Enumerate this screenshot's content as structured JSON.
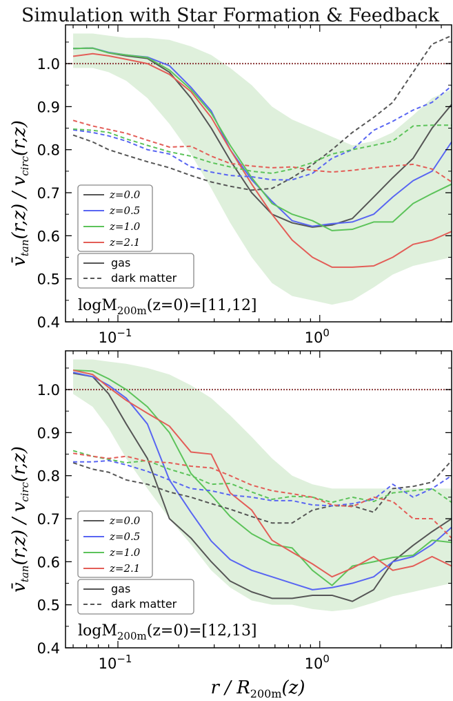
{
  "title": "Simulation with Star Formation & Feedback",
  "colors": {
    "z0": "#555555",
    "z05": "#5865f2",
    "z1": "#5cc35a",
    "z21": "#e35d57",
    "band": "#dff0dc",
    "refline": "#8b3a3a"
  },
  "shared_xlabel": "r / R200m(z)",
  "chart_data": [
    {
      "type": "line",
      "ylabel": "v̄tan(r,z) / vcirc(r,z)",
      "xscale": "log",
      "xlim": [
        0.055,
        4.5
      ],
      "ylim": [
        0.4,
        1.09
      ],
      "yticks": [
        0.4,
        0.5,
        0.6,
        0.7,
        0.8,
        0.9,
        1.0
      ],
      "ytick_labels": [
        "0.4",
        "0.5",
        "0.6",
        "0.7",
        "0.8",
        "0.9",
        "1.0"
      ],
      "xticks": [
        0.1,
        1.0
      ],
      "xtick_labels": [
        "10−1",
        "100"
      ],
      "reference_line": 1.0,
      "annotation": "logM200m(z=0)=[11,12]",
      "legend_series_labels": [
        "z=0.0",
        "z=0.5",
        "z=1.0",
        "z=2.1"
      ],
      "legend_style_labels": [
        "gas",
        "dark matter"
      ],
      "legend_placement": "center-left",
      "x": [
        0.06,
        0.075,
        0.09,
        0.11,
        0.14,
        0.18,
        0.23,
        0.29,
        0.36,
        0.46,
        0.58,
        0.73,
        0.92,
        1.15,
        1.45,
        1.85,
        2.3,
        2.9,
        3.6,
        4.5
      ],
      "band": {
        "series": "z=1.0 gas",
        "lower": [
          0.99,
          0.99,
          0.98,
          0.96,
          0.92,
          0.86,
          0.79,
          0.71,
          0.63,
          0.55,
          0.49,
          0.46,
          0.45,
          0.44,
          0.45,
          0.48,
          0.51,
          0.53,
          0.54,
          0.55
        ],
        "upper": [
          1.07,
          1.07,
          1.065,
          1.06,
          1.06,
          1.055,
          1.04,
          1.02,
          0.99,
          0.95,
          0.9,
          0.87,
          0.85,
          0.83,
          0.81,
          0.82,
          0.84,
          0.88,
          0.92,
          0.94
        ]
      },
      "series": [
        {
          "name": "z=0.0",
          "component": "gas",
          "color_key": "z0",
          "values": [
            1.035,
            1.036,
            1.025,
            1.018,
            1.012,
            0.98,
            0.92,
            0.85,
            0.775,
            0.7,
            0.65,
            0.63,
            0.62,
            0.625,
            0.64,
            0.69,
            0.735,
            0.78,
            0.85,
            0.905
          ]
        },
        {
          "name": "z=0.5",
          "component": "gas",
          "color_key": "z05",
          "values": [
            1.035,
            1.036,
            1.026,
            1.02,
            1.015,
            0.995,
            0.945,
            0.89,
            0.8,
            0.73,
            0.68,
            0.635,
            0.622,
            0.628,
            0.632,
            0.65,
            0.69,
            0.728,
            0.75,
            0.818
          ]
        },
        {
          "name": "z=1.0",
          "component": "gas",
          "color_key": "z1",
          "values": [
            1.035,
            1.036,
            1.025,
            1.02,
            1.014,
            0.985,
            0.94,
            0.885,
            0.81,
            0.735,
            0.675,
            0.65,
            0.635,
            0.612,
            0.615,
            0.632,
            0.632,
            0.675,
            0.698,
            0.72
          ]
        },
        {
          "name": "z=2.1",
          "component": "gas",
          "color_key": "z21",
          "values": [
            1.017,
            1.023,
            1.018,
            1.01,
            1.0,
            0.975,
            0.935,
            0.875,
            0.8,
            0.72,
            0.65,
            0.59,
            0.55,
            0.527,
            0.527,
            0.53,
            0.55,
            0.58,
            0.59,
            0.61
          ]
        },
        {
          "name": "z=0.0",
          "component": "dark matter",
          "color_key": "z0",
          "values": [
            0.834,
            0.818,
            0.8,
            0.787,
            0.772,
            0.758,
            0.74,
            0.725,
            0.715,
            0.706,
            0.71,
            0.735,
            0.765,
            0.8,
            0.84,
            0.875,
            0.91,
            0.98,
            1.045,
            1.065
          ]
        },
        {
          "name": "z=0.5",
          "component": "dark matter",
          "color_key": "z05",
          "values": [
            0.846,
            0.84,
            0.832,
            0.82,
            0.8,
            0.79,
            0.76,
            0.748,
            0.74,
            0.737,
            0.73,
            0.73,
            0.745,
            0.78,
            0.8,
            0.845,
            0.866,
            0.892,
            0.91,
            0.948
          ]
        },
        {
          "name": "z=1.0",
          "component": "dark matter",
          "color_key": "z1",
          "values": [
            0.848,
            0.845,
            0.84,
            0.825,
            0.81,
            0.795,
            0.785,
            0.77,
            0.76,
            0.75,
            0.745,
            0.755,
            0.77,
            0.79,
            0.8,
            0.81,
            0.82,
            0.855,
            0.857,
            0.857
          ]
        },
        {
          "name": "z=2.1",
          "component": "dark matter",
          "color_key": "z21",
          "values": [
            0.868,
            0.855,
            0.847,
            0.838,
            0.822,
            0.806,
            0.808,
            0.785,
            0.768,
            0.762,
            0.758,
            0.76,
            0.752,
            0.748,
            0.752,
            0.758,
            0.762,
            0.766,
            0.755,
            0.725
          ]
        }
      ]
    },
    {
      "type": "line",
      "ylabel": "v̄tan(r,z) / vcirc(r,z)",
      "xlabel": "r / R200m(z)",
      "xscale": "log",
      "xlim": [
        0.055,
        4.5
      ],
      "ylim": [
        0.4,
        1.09
      ],
      "yticks": [
        0.4,
        0.5,
        0.6,
        0.7,
        0.8,
        0.9,
        1.0
      ],
      "ytick_labels": [
        "0.4",
        "0.5",
        "0.6",
        "0.7",
        "0.8",
        "0.9",
        "1.0"
      ],
      "xticks": [
        0.1,
        1.0
      ],
      "xtick_labels": [
        "10−1",
        "100"
      ],
      "reference_line": 1.0,
      "annotation": "logM200m(z=0)=[12,13]",
      "legend_series_labels": [
        "z=0.0",
        "z=0.5",
        "z=1.0",
        "z=2.1"
      ],
      "legend_style_labels": [
        "gas",
        "dark matter"
      ],
      "legend_placement": "center-left",
      "x": [
        0.06,
        0.075,
        0.09,
        0.11,
        0.14,
        0.18,
        0.23,
        0.29,
        0.36,
        0.46,
        0.58,
        0.73,
        0.92,
        1.15,
        1.45,
        1.85,
        2.3,
        2.9,
        3.6,
        4.5
      ],
      "band": {
        "series": "z=1.0 gas",
        "lower": [
          0.99,
          0.96,
          0.91,
          0.84,
          0.77,
          0.7,
          0.64,
          0.58,
          0.54,
          0.51,
          0.5,
          0.5,
          0.49,
          0.485,
          0.49,
          0.505,
          0.52,
          0.53,
          0.54,
          0.55
        ],
        "upper": [
          1.07,
          1.07,
          1.065,
          1.06,
          1.05,
          1.035,
          1.01,
          0.98,
          0.94,
          0.89,
          0.84,
          0.8,
          0.78,
          0.77,
          0.77,
          0.77,
          0.77,
          0.77,
          0.77,
          0.77
        ]
      },
      "series": [
        {
          "name": "z=0.0",
          "component": "gas",
          "color_key": "z0",
          "values": [
            1.038,
            1.03,
            0.99,
            0.92,
            0.84,
            0.7,
            0.655,
            0.6,
            0.555,
            0.53,
            0.515,
            0.515,
            0.522,
            0.522,
            0.508,
            0.535,
            0.6,
            0.638,
            0.67,
            0.7
          ]
        },
        {
          "name": "z=0.5",
          "component": "gas",
          "color_key": "z05",
          "values": [
            1.04,
            1.03,
            1.01,
            0.98,
            0.92,
            0.79,
            0.715,
            0.648,
            0.605,
            0.58,
            0.565,
            0.55,
            0.535,
            0.54,
            0.55,
            0.565,
            0.6,
            0.612,
            0.64,
            0.68
          ]
        },
        {
          "name": "z=1.0",
          "component": "gas",
          "color_key": "z1",
          "values": [
            1.045,
            1.043,
            1.025,
            1.0,
            0.96,
            0.9,
            0.805,
            0.755,
            0.705,
            0.665,
            0.64,
            0.632,
            0.58,
            0.545,
            0.59,
            0.6,
            0.61,
            0.615,
            0.65,
            0.645
          ]
        },
        {
          "name": "z=2.1",
          "component": "gas",
          "color_key": "z21",
          "values": [
            1.045,
            1.035,
            1.005,
            0.975,
            0.945,
            0.915,
            0.855,
            0.85,
            0.76,
            0.72,
            0.65,
            0.622,
            0.595,
            0.565,
            0.585,
            0.612,
            0.58,
            0.59,
            0.612,
            0.59
          ]
        },
        {
          "name": "z=0.0",
          "component": "dark matter",
          "color_key": "z0",
          "values": [
            0.83,
            0.815,
            0.808,
            0.79,
            0.78,
            0.762,
            0.75,
            0.735,
            0.722,
            0.705,
            0.69,
            0.69,
            0.72,
            0.73,
            0.73,
            0.715,
            0.77,
            0.775,
            0.785,
            0.835
          ]
        },
        {
          "name": "z=0.5",
          "component": "dark matter",
          "color_key": "z05",
          "values": [
            0.832,
            0.832,
            0.835,
            0.825,
            0.81,
            0.79,
            0.77,
            0.765,
            0.755,
            0.75,
            0.742,
            0.742,
            0.732,
            0.73,
            0.735,
            0.745,
            0.78,
            0.75,
            0.77,
            0.8
          ]
        },
        {
          "name": "z=1.0",
          "component": "dark matter",
          "color_key": "z1",
          "values": [
            0.858,
            0.845,
            0.838,
            0.83,
            0.835,
            0.815,
            0.8,
            0.78,
            0.782,
            0.762,
            0.745,
            0.752,
            0.75,
            0.738,
            0.75,
            0.74,
            0.76,
            0.765,
            0.77,
            0.738
          ]
        },
        {
          "name": "z=2.1",
          "component": "dark matter",
          "color_key": "z21",
          "values": [
            0.852,
            0.845,
            0.84,
            0.845,
            0.833,
            0.83,
            0.822,
            0.818,
            0.8,
            0.778,
            0.765,
            0.758,
            0.75,
            0.732,
            0.728,
            0.75,
            0.74,
            0.7,
            0.7,
            0.655
          ]
        }
      ]
    }
  ]
}
